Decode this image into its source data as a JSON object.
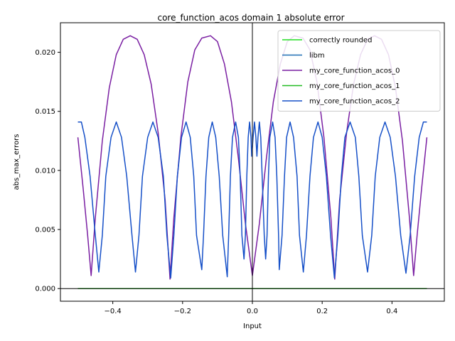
{
  "chart_data": {
    "type": "line",
    "title": "core_function_acos domain 1 absolute error",
    "xlabel": "Input",
    "ylabel": "abs_max_errors",
    "xlim": [
      -0.55,
      0.55
    ],
    "ylim": [
      -0.00107,
      0.0225
    ],
    "xticks": [
      -0.4,
      -0.2,
      0.0,
      0.2,
      0.4
    ],
    "xtick_labels": [
      "−0.4",
      "−0.2",
      "0.0",
      "0.2",
      "0.4"
    ],
    "yticks": [
      0.0,
      0.005,
      0.01,
      0.015,
      0.02
    ],
    "ytick_labels": [
      "0.000",
      "0.005",
      "0.010",
      "0.015",
      "0.020"
    ],
    "grid": false,
    "reference_lines": {
      "vertical_x": 0.0,
      "horizontal_y": 0.0
    },
    "legend_position": "top-right",
    "series": [
      {
        "name": "correctly rounded",
        "color": "#22dd22",
        "points": [
          [
            -0.5,
            0.0
          ],
          [
            0.5,
            0.0
          ]
        ]
      },
      {
        "name": "libm",
        "color": "#1f6fb4",
        "points": [
          [
            -0.5,
            0.0
          ],
          [
            0.5,
            0.0
          ]
        ]
      },
      {
        "name": "my_core_function_acos_0",
        "color": "#7a1fa2",
        "points": [
          [
            -0.5,
            0.0128
          ],
          [
            -0.485,
            0.0085
          ],
          [
            -0.472,
            0.0045
          ],
          [
            -0.462,
            0.0011
          ],
          [
            -0.45,
            0.006
          ],
          [
            -0.43,
            0.0125
          ],
          [
            -0.41,
            0.017
          ],
          [
            -0.39,
            0.0198
          ],
          [
            -0.37,
            0.0211
          ],
          [
            -0.35,
            0.0214
          ],
          [
            -0.33,
            0.0211
          ],
          [
            -0.31,
            0.0198
          ],
          [
            -0.29,
            0.0173
          ],
          [
            -0.27,
            0.0132
          ],
          [
            -0.25,
            0.0075
          ],
          [
            -0.236,
            0.0008
          ],
          [
            -0.225,
            0.006
          ],
          [
            -0.205,
            0.0128
          ],
          [
            -0.185,
            0.0175
          ],
          [
            -0.165,
            0.0202
          ],
          [
            -0.145,
            0.0212
          ],
          [
            -0.12,
            0.0214
          ],
          [
            -0.1,
            0.0209
          ],
          [
            -0.08,
            0.019
          ],
          [
            -0.06,
            0.0158
          ],
          [
            -0.04,
            0.011
          ],
          [
            -0.02,
            0.0055
          ],
          [
            0.0,
            0.0011
          ],
          [
            0.02,
            0.0055
          ],
          [
            0.04,
            0.011
          ],
          [
            0.06,
            0.0158
          ],
          [
            0.08,
            0.019
          ],
          [
            0.1,
            0.0209
          ],
          [
            0.12,
            0.0214
          ],
          [
            0.145,
            0.0212
          ],
          [
            0.165,
            0.0202
          ],
          [
            0.185,
            0.0175
          ],
          [
            0.205,
            0.0128
          ],
          [
            0.225,
            0.006
          ],
          [
            0.236,
            0.0008
          ],
          [
            0.25,
            0.0075
          ],
          [
            0.27,
            0.0132
          ],
          [
            0.29,
            0.0173
          ],
          [
            0.31,
            0.0198
          ],
          [
            0.33,
            0.0211
          ],
          [
            0.35,
            0.0214
          ],
          [
            0.37,
            0.0211
          ],
          [
            0.39,
            0.0198
          ],
          [
            0.41,
            0.017
          ],
          [
            0.43,
            0.0125
          ],
          [
            0.45,
            0.006
          ],
          [
            0.462,
            0.0011
          ],
          [
            0.472,
            0.0045
          ],
          [
            0.485,
            0.0085
          ],
          [
            0.5,
            0.0128
          ]
        ]
      },
      {
        "name": "my_core_function_acos_1",
        "color": "#22bb22",
        "points": [
          [
            -0.5,
            0.0
          ],
          [
            0.5,
            0.0
          ]
        ]
      },
      {
        "name": "my_core_function_acos_2",
        "color": "#1650c8",
        "points": [
          [
            -0.5,
            0.0141
          ],
          [
            -0.49,
            0.0141
          ],
          [
            -0.48,
            0.0128
          ],
          [
            -0.465,
            0.0095
          ],
          [
            -0.45,
            0.0045
          ],
          [
            -0.44,
            0.0014
          ],
          [
            -0.43,
            0.0045
          ],
          [
            -0.42,
            0.0095
          ],
          [
            -0.405,
            0.0128
          ],
          [
            -0.39,
            0.0141
          ],
          [
            -0.375,
            0.0128
          ],
          [
            -0.36,
            0.0095
          ],
          [
            -0.345,
            0.0045
          ],
          [
            -0.335,
            0.0014
          ],
          [
            -0.325,
            0.0045
          ],
          [
            -0.315,
            0.0095
          ],
          [
            -0.3,
            0.0128
          ],
          [
            -0.285,
            0.0141
          ],
          [
            -0.27,
            0.0128
          ],
          [
            -0.255,
            0.0095
          ],
          [
            -0.245,
            0.0045
          ],
          [
            -0.234,
            0.0009
          ],
          [
            -0.225,
            0.0045
          ],
          [
            -0.215,
            0.0095
          ],
          [
            -0.203,
            0.0128
          ],
          [
            -0.19,
            0.0141
          ],
          [
            -0.178,
            0.0128
          ],
          [
            -0.168,
            0.0095
          ],
          [
            -0.16,
            0.0045
          ],
          [
            -0.145,
            0.0016
          ],
          [
            -0.14,
            0.0045
          ],
          [
            -0.133,
            0.0095
          ],
          [
            -0.125,
            0.0128
          ],
          [
            -0.115,
            0.0141
          ],
          [
            -0.105,
            0.0128
          ],
          [
            -0.095,
            0.0095
          ],
          [
            -0.085,
            0.0045
          ],
          [
            -0.072,
            0.001
          ],
          [
            -0.068,
            0.0045
          ],
          [
            -0.063,
            0.0095
          ],
          [
            -0.057,
            0.0128
          ],
          [
            -0.048,
            0.0141
          ],
          [
            -0.04,
            0.0128
          ],
          [
            -0.035,
            0.0095
          ],
          [
            -0.03,
            0.0045
          ],
          [
            -0.024,
            0.0025
          ],
          [
            -0.02,
            0.0045
          ],
          [
            -0.016,
            0.0095
          ],
          [
            -0.012,
            0.0128
          ],
          [
            -0.008,
            0.0141
          ],
          [
            -0.004,
            0.0128
          ],
          [
            -0.002,
            0.0112
          ],
          [
            0.002,
            0.0128
          ],
          [
            0.006,
            0.0141
          ],
          [
            0.01,
            0.0128
          ],
          [
            0.013,
            0.0112
          ],
          [
            0.016,
            0.0128
          ],
          [
            0.02,
            0.0141
          ],
          [
            0.024,
            0.0128
          ],
          [
            0.028,
            0.0095
          ],
          [
            0.034,
            0.0045
          ],
          [
            0.038,
            0.0025
          ],
          [
            0.042,
            0.0045
          ],
          [
            0.046,
            0.0095
          ],
          [
            0.05,
            0.0128
          ],
          [
            0.058,
            0.0141
          ],
          [
            0.065,
            0.0128
          ],
          [
            0.07,
            0.0095
          ],
          [
            0.075,
            0.0045
          ],
          [
            0.077,
            0.0016
          ],
          [
            0.085,
            0.0045
          ],
          [
            0.092,
            0.0095
          ],
          [
            0.098,
            0.0128
          ],
          [
            0.108,
            0.0141
          ],
          [
            0.118,
            0.0128
          ],
          [
            0.128,
            0.0095
          ],
          [
            0.135,
            0.0045
          ],
          [
            0.146,
            0.0014
          ],
          [
            0.155,
            0.0045
          ],
          [
            0.165,
            0.0095
          ],
          [
            0.175,
            0.0128
          ],
          [
            0.188,
            0.0141
          ],
          [
            0.2,
            0.0128
          ],
          [
            0.212,
            0.0095
          ],
          [
            0.224,
            0.0045
          ],
          [
            0.235,
            0.0009
          ],
          [
            0.245,
            0.0045
          ],
          [
            0.255,
            0.0095
          ],
          [
            0.265,
            0.0128
          ],
          [
            0.28,
            0.0141
          ],
          [
            0.295,
            0.0128
          ],
          [
            0.305,
            0.0095
          ],
          [
            0.315,
            0.0045
          ],
          [
            0.33,
            0.0014
          ],
          [
            0.342,
            0.0045
          ],
          [
            0.352,
            0.0095
          ],
          [
            0.365,
            0.0128
          ],
          [
            0.38,
            0.0141
          ],
          [
            0.395,
            0.0128
          ],
          [
            0.41,
            0.0095
          ],
          [
            0.425,
            0.0045
          ],
          [
            0.44,
            0.0013
          ],
          [
            0.452,
            0.0045
          ],
          [
            0.465,
            0.0095
          ],
          [
            0.478,
            0.0128
          ],
          [
            0.49,
            0.0141
          ],
          [
            0.5,
            0.0141
          ]
        ]
      }
    ]
  }
}
